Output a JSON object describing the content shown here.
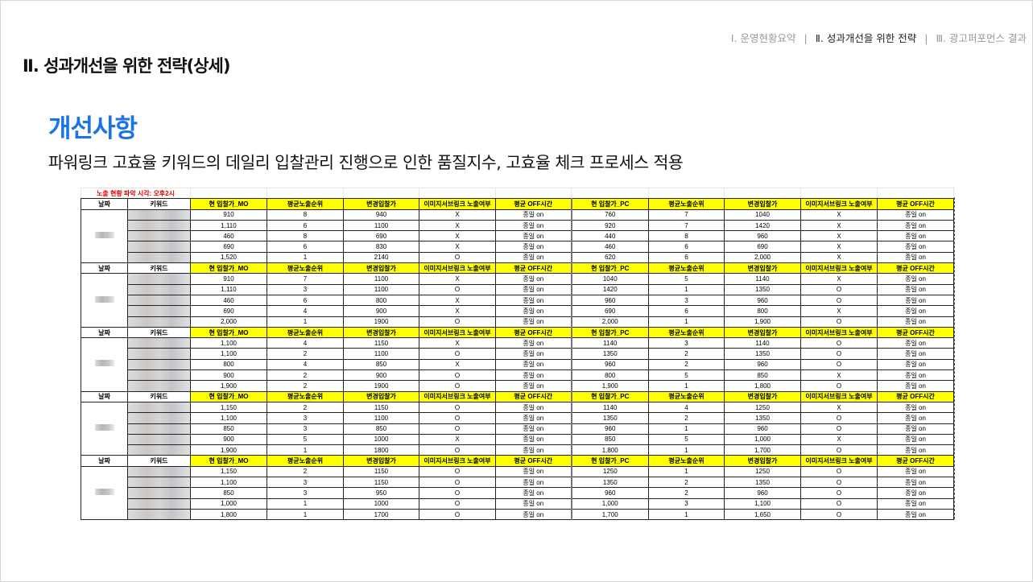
{
  "nav": {
    "items": [
      "Ⅰ. 운영현황요약",
      "Ⅱ. 성과개선을 위한 전략",
      "Ⅲ. 광고퍼포먼스 결과"
    ],
    "separator": "|",
    "active_index": 1
  },
  "page_title": "Ⅱ. 성과개선을 위한 전략(상세)",
  "heading": "개선사항",
  "subheading": "파워링크 고효율 키워드의 데일리 입찰관리 진행으로 인한 품질지수, 고효율 체크 프로세스 적용",
  "accent_color": "#1a73e8",
  "header_fill": "#ffff00",
  "sheet": {
    "note": "노출 현황 파악 시각: 오후2시",
    "headers": [
      "날짜",
      "키워드",
      "현 입찰가_MO",
      "평균노출순위",
      "변경입찰가",
      "이미지서브링크 노출여부",
      "평균 OFF시간",
      "현 입찰가_PC",
      "평균노출순위",
      "변경입찰가",
      "이미지서브링크 노출여부",
      "평균 OFF시간"
    ],
    "blocks": [
      {
        "rows": [
          [
            "910",
            "8",
            "940",
            "X",
            "종일 on",
            "760",
            "7",
            "1040",
            "X",
            "종일 on"
          ],
          [
            "1,110",
            "6",
            "1100",
            "X",
            "종일 on",
            "920",
            "7",
            "1420",
            "X",
            "종일 on"
          ],
          [
            "460",
            "8",
            "690",
            "X",
            "종일 on",
            "440",
            "8",
            "960",
            "X",
            "종일 on"
          ],
          [
            "690",
            "6",
            "830",
            "X",
            "종일 on",
            "460",
            "6",
            "690",
            "X",
            "종일 on"
          ],
          [
            "1,520",
            "1",
            "2140",
            "O",
            "종일 on",
            "620",
            "6",
            "2,000",
            "X",
            "종일 on"
          ]
        ]
      },
      {
        "rows": [
          [
            "910",
            "7",
            "1100",
            "X",
            "종일 on",
            "1040",
            "5",
            "1140",
            "X",
            "종일 on"
          ],
          [
            "1,110",
            "3",
            "1100",
            "O",
            "종일 on",
            "1420",
            "1",
            "1350",
            "O",
            "종일 on"
          ],
          [
            "460",
            "6",
            "800",
            "X",
            "종일 on",
            "960",
            "3",
            "960",
            "O",
            "종일 on"
          ],
          [
            "690",
            "4",
            "900",
            "X",
            "종일 on",
            "690",
            "6",
            "800",
            "X",
            "종일 on"
          ],
          [
            "2,000",
            "1",
            "1900",
            "O",
            "종일 on",
            "2,000",
            "1",
            "1,900",
            "O",
            "종일 on"
          ]
        ]
      },
      {
        "rows": [
          [
            "1,100",
            "4",
            "1150",
            "X",
            "종일 on",
            "1140",
            "3",
            "1140",
            "O",
            "종일 on"
          ],
          [
            "1,100",
            "2",
            "1100",
            "O",
            "종일 on",
            "1350",
            "2",
            "1350",
            "O",
            "종일 on"
          ],
          [
            "800",
            "4",
            "850",
            "X",
            "종일 on",
            "960",
            "2",
            "960",
            "O",
            "종일 on"
          ],
          [
            "900",
            "2",
            "900",
            "O",
            "종일 on",
            "800",
            "5",
            "850",
            "X",
            "종일 on"
          ],
          [
            "1,900",
            "2",
            "1900",
            "O",
            "종일 on",
            "1,900",
            "1",
            "1,800",
            "O",
            "종일 on"
          ]
        ]
      },
      {
        "rows": [
          [
            "1,150",
            "2",
            "1150",
            "O",
            "종일 on",
            "1140",
            "4",
            "1250",
            "X",
            "종일 on"
          ],
          [
            "1,100",
            "3",
            "1100",
            "O",
            "종일 on",
            "1350",
            "2",
            "1350",
            "O",
            "종일 on"
          ],
          [
            "850",
            "3",
            "850",
            "O",
            "종일 on",
            "960",
            "1",
            "960",
            "O",
            "종일 on"
          ],
          [
            "900",
            "5",
            "1000",
            "X",
            "종일 on",
            "850",
            "5",
            "1,000",
            "X",
            "종일 on"
          ],
          [
            "1,900",
            "1",
            "1800",
            "O",
            "종일 on",
            "1,800",
            "1",
            "1,700",
            "O",
            "종일 on"
          ]
        ]
      },
      {
        "rows": [
          [
            "1,150",
            "2",
            "1150",
            "O",
            "종일 on",
            "1250",
            "1",
            "1250",
            "O",
            "종일 on"
          ],
          [
            "1,100",
            "3",
            "1150",
            "O",
            "종일 on",
            "1350",
            "2",
            "1350",
            "O",
            "종일 on"
          ],
          [
            "850",
            "3",
            "950",
            "O",
            "종일 on",
            "960",
            "2",
            "960",
            "O",
            "종일 on"
          ],
          [
            "1,000",
            "1",
            "1000",
            "O",
            "종일 on",
            "1,000",
            "3",
            "1,100",
            "O",
            "종일 on"
          ],
          [
            "1,800",
            "1",
            "1700",
            "O",
            "종일 on",
            "1,700",
            "1",
            "1,650",
            "O",
            "종일 on"
          ]
        ]
      }
    ]
  }
}
